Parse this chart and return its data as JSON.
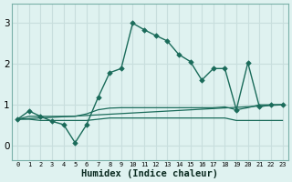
{
  "xlabel": "Humidex (Indice chaleur)",
  "background_color": "#dff2f0",
  "grid_color": "#c8dedd",
  "line_color": "#1a6b5a",
  "ylim": [
    -0.35,
    3.45
  ],
  "xlim": [
    -0.5,
    23.5
  ],
  "yticks": [
    0,
    1,
    2,
    3
  ],
  "x": [
    0,
    1,
    2,
    3,
    4,
    5,
    6,
    7,
    8,
    9,
    10,
    11,
    12,
    13,
    14,
    15,
    16,
    17,
    18,
    19,
    20,
    21,
    22,
    23
  ],
  "main_y": [
    0.65,
    0.85,
    0.72,
    0.6,
    0.52,
    0.08,
    0.52,
    1.18,
    1.78,
    1.88,
    2.98,
    2.82,
    2.68,
    2.55,
    2.22,
    2.05,
    1.6,
    1.88,
    1.88,
    0.88,
    2.02,
    0.95,
    1.0,
    1.0
  ],
  "flat1_y": [
    0.65,
    0.65,
    0.62,
    0.62,
    0.62,
    0.62,
    0.62,
    0.65,
    0.68,
    0.68,
    0.68,
    0.68,
    0.68,
    0.68,
    0.68,
    0.68,
    0.68,
    0.68,
    0.68,
    0.62,
    0.62,
    0.62,
    0.62,
    0.62
  ],
  "flat2_y": [
    0.65,
    0.72,
    0.72,
    0.72,
    0.72,
    0.72,
    0.78,
    0.88,
    0.92,
    0.93,
    0.93,
    0.93,
    0.93,
    0.93,
    0.93,
    0.93,
    0.93,
    0.93,
    0.95,
    0.88,
    0.93,
    1.0,
    1.0,
    1.0
  ]
}
